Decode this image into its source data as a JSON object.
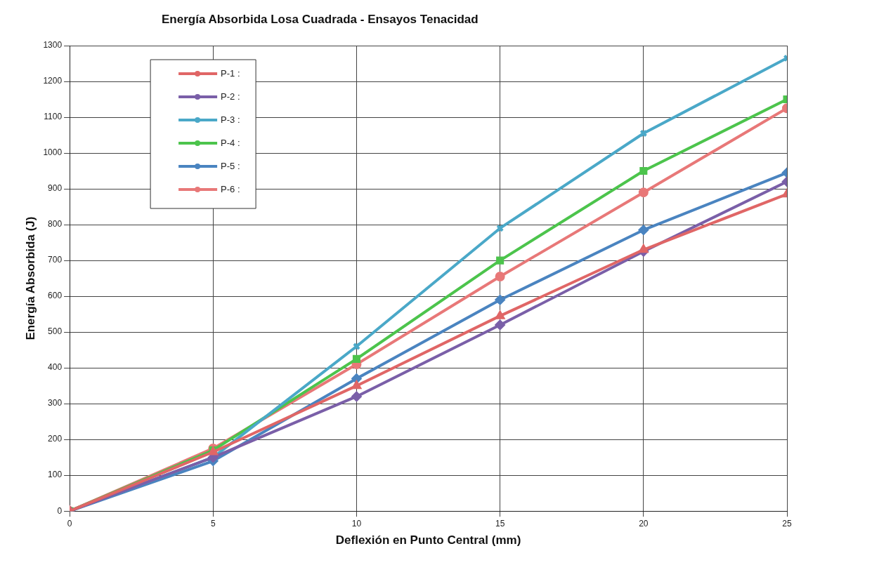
{
  "chart_data": {
    "type": "line",
    "title": "Energía Absorbida Losa Cuadrada - Ensayos Tenacidad",
    "xlabel": "Deflexión en Punto Central (mm)",
    "ylabel": "Energía Absorbida (J)",
    "x": [
      0,
      5,
      10,
      15,
      20,
      25
    ],
    "series": [
      {
        "name": "P-1 :",
        "color": "#e06666",
        "marker": "triangle",
        "values": [
          0,
          165,
          350,
          545,
          730,
          885
        ]
      },
      {
        "name": "P-2 :",
        "color": "#7a5fa8",
        "marker": "diamond",
        "values": [
          0,
          150,
          320,
          520,
          725,
          920
        ]
      },
      {
        "name": "P-3 :",
        "color": "#4aa8c8",
        "marker": "cross",
        "values": [
          0,
          150,
          460,
          790,
          1055,
          1265
        ]
      },
      {
        "name": "P-4 :",
        "color": "#4cc44c",
        "marker": "square",
        "values": [
          0,
          170,
          425,
          700,
          950,
          1150
        ]
      },
      {
        "name": "P-5 :",
        "color": "#4a84c0",
        "marker": "diamond",
        "values": [
          0,
          140,
          370,
          590,
          785,
          945
        ]
      },
      {
        "name": "P-6 :",
        "color": "#e87878",
        "marker": "circle",
        "values": [
          0,
          175,
          410,
          655,
          890,
          1125
        ]
      }
    ],
    "xlim": [
      0,
      25
    ],
    "xticks": [
      0,
      5,
      10,
      15,
      20,
      25
    ],
    "ylim": [
      0,
      1300
    ],
    "yticks": [
      0,
      100,
      200,
      300,
      400,
      500,
      600,
      700,
      800,
      900,
      1000,
      1100,
      1200,
      1300
    ],
    "grid": true,
    "legend": "top left"
  }
}
